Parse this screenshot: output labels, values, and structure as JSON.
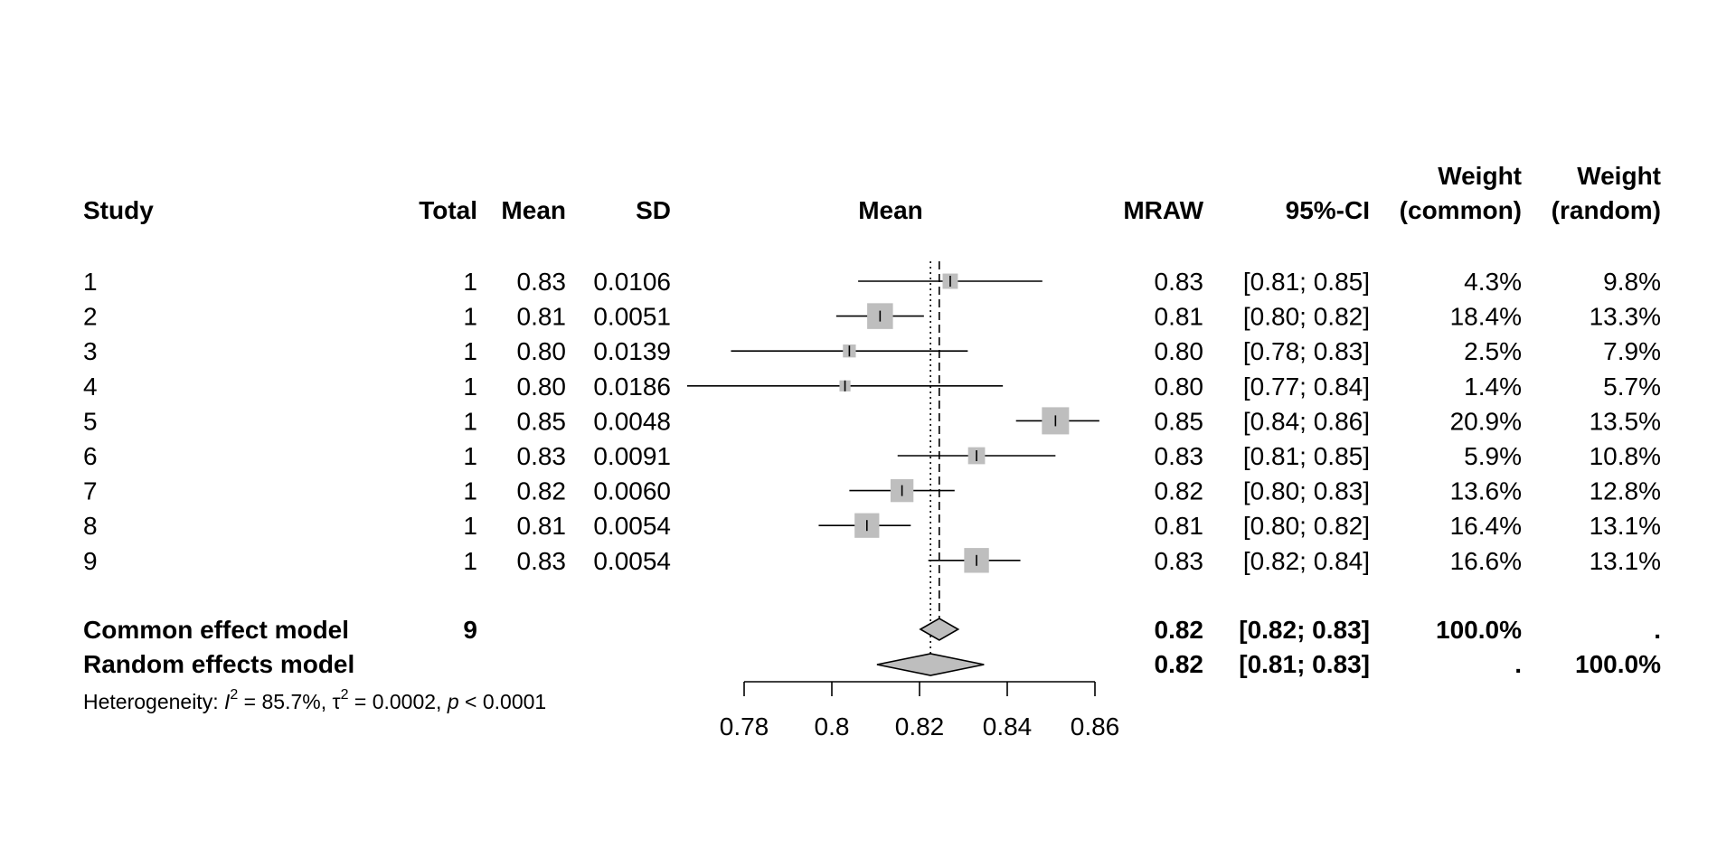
{
  "chart_data": {
    "type": "forest",
    "columns": {
      "study": "Study",
      "total": "Total",
      "mean": "Mean",
      "sd": "SD",
      "plot_label": "Mean",
      "mraw": "MRAW",
      "ci": "95%-CI",
      "weight_common_l1": "Weight",
      "weight_common_l2": "(common)",
      "weight_random_l1": "Weight",
      "weight_random_l2": "(random)"
    },
    "studies": [
      {
        "study": "1",
        "total": "1",
        "mean": "0.83",
        "sd": "0.0106",
        "mraw": "0.83",
        "ci": "[0.81; 0.85]",
        "w_common": "4.3%",
        "w_random": "9.8%",
        "est": 0.827,
        "lo": 0.806,
        "hi": 0.848,
        "wc": 4.3
      },
      {
        "study": "2",
        "total": "1",
        "mean": "0.81",
        "sd": "0.0051",
        "mraw": "0.81",
        "ci": "[0.80; 0.82]",
        "w_common": "18.4%",
        "w_random": "13.3%",
        "est": 0.811,
        "lo": 0.801,
        "hi": 0.821,
        "wc": 18.4
      },
      {
        "study": "3",
        "total": "1",
        "mean": "0.80",
        "sd": "0.0139",
        "mraw": "0.80",
        "ci": "[0.78; 0.83]",
        "w_common": "2.5%",
        "w_random": "7.9%",
        "est": 0.804,
        "lo": 0.777,
        "hi": 0.831,
        "wc": 2.5
      },
      {
        "study": "4",
        "total": "1",
        "mean": "0.80",
        "sd": "0.0186",
        "mraw": "0.80",
        "ci": "[0.77; 0.84]",
        "w_common": "1.4%",
        "w_random": "5.7%",
        "est": 0.803,
        "lo": 0.767,
        "hi": 0.839,
        "wc": 1.4
      },
      {
        "study": "5",
        "total": "1",
        "mean": "0.85",
        "sd": "0.0048",
        "mraw": "0.85",
        "ci": "[0.84; 0.86]",
        "w_common": "20.9%",
        "w_random": "13.5%",
        "est": 0.851,
        "lo": 0.842,
        "hi": 0.861,
        "wc": 20.9
      },
      {
        "study": "6",
        "total": "1",
        "mean": "0.83",
        "sd": "0.0091",
        "mraw": "0.83",
        "ci": "[0.81; 0.85]",
        "w_common": "5.9%",
        "w_random": "10.8%",
        "est": 0.833,
        "lo": 0.815,
        "hi": 0.851,
        "wc": 5.9
      },
      {
        "study": "7",
        "total": "1",
        "mean": "0.82",
        "sd": "0.0060",
        "mraw": "0.82",
        "ci": "[0.80; 0.83]",
        "w_common": "13.6%",
        "w_random": "12.8%",
        "est": 0.816,
        "lo": 0.804,
        "hi": 0.828,
        "wc": 13.6
      },
      {
        "study": "8",
        "total": "1",
        "mean": "0.81",
        "sd": "0.0054",
        "mraw": "0.81",
        "ci": "[0.80; 0.82]",
        "w_common": "16.4%",
        "w_random": "13.1%",
        "est": 0.808,
        "lo": 0.797,
        "hi": 0.818,
        "wc": 16.4
      },
      {
        "study": "9",
        "total": "1",
        "mean": "0.83",
        "sd": "0.0054",
        "mraw": "0.83",
        "ci": "[0.82; 0.84]",
        "w_common": "16.6%",
        "w_random": "13.1%",
        "est": 0.833,
        "lo": 0.822,
        "hi": 0.843,
        "wc": 16.6
      }
    ],
    "common": {
      "label": "Common effect model",
      "total": "9",
      "mraw": "0.82",
      "ci": "[0.82; 0.83]",
      "w_common": "100.0%",
      "w_random": ".",
      "est": 0.8245,
      "lo": 0.8202,
      "hi": 0.8288
    },
    "random": {
      "label": "Random effects model",
      "mraw": "0.82",
      "ci": "[0.81; 0.83]",
      "w_common": ".",
      "w_random": "100.0%",
      "est": 0.8225,
      "lo": 0.8103,
      "hi": 0.8347
    },
    "heterogeneity": {
      "prefix": "Heterogeneity: ",
      "i2_sym": "I",
      "i2_value": " = 85.7%, ",
      "tau_sym": "τ",
      "tau_value": " = 0.0002, ",
      "p_sym": "p",
      "p_value": " < 0.0001",
      "sup": "2"
    },
    "x_axis": {
      "ticks": [
        0.78,
        0.8,
        0.82,
        0.84,
        0.86
      ],
      "tick_labels": [
        "0.78",
        "0.8",
        "0.82",
        "0.84",
        "0.86"
      ],
      "range": [
        0.78,
        0.86
      ]
    },
    "marker_color": "#bebebe"
  }
}
